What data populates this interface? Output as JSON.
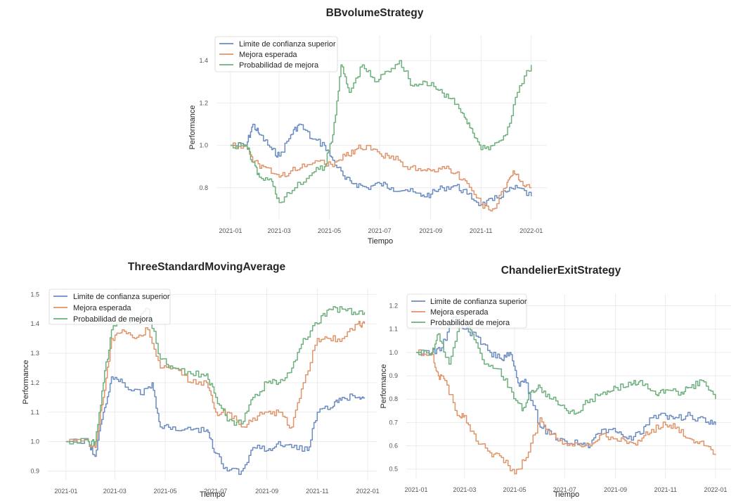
{
  "colors": {
    "limite": "#6b8cc1",
    "mejora": "#e0946a",
    "probabilidad": "#6db07d"
  },
  "chart_data": [
    {
      "type": "line",
      "title": "BBvolumeStrategy",
      "xlabel": "Tiempo",
      "ylabel": "Performance",
      "xlim": [
        "2020-12-15",
        "2022-01-20"
      ],
      "ylim": [
        0.65,
        1.52
      ],
      "xticks": [
        "2021-01",
        "2021-03",
        "2021-05",
        "2021-07",
        "2021-09",
        "2021-11",
        "2022-01"
      ],
      "yticks": [
        "0.8",
        "1.0",
        "1.2",
        "1.4"
      ],
      "ytick_values": [
        0.8,
        1.0,
        1.2,
        1.4
      ],
      "grid": true,
      "legend_position": "top-left",
      "series": [
        {
          "name": "Limite de confianza superior",
          "color": "#6b8cc1",
          "x": [
            "2021-01-01",
            "2021-01-20",
            "2021-01-28",
            "2021-02-05",
            "2021-02-20",
            "2021-03-01",
            "2021-03-15",
            "2021-03-25",
            "2021-04-10",
            "2021-04-25",
            "2021-05-05",
            "2021-05-20",
            "2021-06-01",
            "2021-06-15",
            "2021-07-01",
            "2021-07-15",
            "2021-08-01",
            "2021-08-20",
            "2021-09-01",
            "2021-09-15",
            "2021-10-01",
            "2021-10-15",
            "2021-11-01",
            "2021-11-15",
            "2021-12-01",
            "2021-12-15",
            "2022-01-01"
          ],
          "y": [
            1.0,
            1.0,
            1.1,
            1.05,
            0.98,
            0.95,
            1.05,
            1.1,
            1.03,
            1.0,
            0.93,
            0.84,
            0.82,
            0.8,
            0.82,
            0.8,
            0.79,
            0.76,
            0.77,
            0.8,
            0.81,
            0.77,
            0.72,
            0.74,
            0.78,
            0.8,
            0.76
          ]
        },
        {
          "name": "Mejora esperada",
          "color": "#e0946a",
          "x": [
            "2021-01-01",
            "2021-01-20",
            "2021-01-28",
            "2021-02-10",
            "2021-03-01",
            "2021-03-15",
            "2021-04-01",
            "2021-04-20",
            "2021-05-05",
            "2021-05-20",
            "2021-06-01",
            "2021-06-15",
            "2021-07-01",
            "2021-07-15",
            "2021-08-01",
            "2021-08-20",
            "2021-09-01",
            "2021-09-15",
            "2021-10-01",
            "2021-10-15",
            "2021-11-01",
            "2021-11-15",
            "2021-12-01",
            "2021-12-10",
            "2021-12-20",
            "2022-01-01"
          ],
          "y": [
            1.0,
            1.0,
            0.92,
            0.9,
            0.85,
            0.88,
            0.9,
            0.93,
            0.9,
            0.95,
            0.98,
            1.0,
            0.96,
            0.95,
            0.9,
            0.88,
            0.88,
            0.9,
            0.87,
            0.82,
            0.72,
            0.7,
            0.8,
            0.88,
            0.83,
            0.8
          ]
        },
        {
          "name": "Probabilidad de mejora",
          "color": "#6db07d",
          "x": [
            "2021-01-01",
            "2021-01-20",
            "2021-01-28",
            "2021-02-05",
            "2021-02-20",
            "2021-03-01",
            "2021-03-20",
            "2021-04-10",
            "2021-04-25",
            "2021-05-05",
            "2021-05-15",
            "2021-05-25",
            "2021-06-10",
            "2021-06-25",
            "2021-07-10",
            "2021-07-25",
            "2021-08-10",
            "2021-08-25",
            "2021-09-10",
            "2021-09-25",
            "2021-10-10",
            "2021-10-20",
            "2021-11-01",
            "2021-11-15",
            "2021-12-01",
            "2021-12-15",
            "2022-01-01"
          ],
          "y": [
            1.0,
            1.0,
            0.92,
            0.85,
            0.83,
            0.73,
            0.8,
            0.87,
            0.9,
            1.05,
            1.38,
            1.25,
            1.38,
            1.3,
            1.35,
            1.4,
            1.28,
            1.3,
            1.26,
            1.22,
            1.15,
            1.08,
            0.98,
            1.0,
            1.05,
            1.25,
            1.38
          ]
        }
      ]
    },
    {
      "type": "line",
      "title": "ThreeStandardMovingAverage",
      "xlabel": "Tiempo",
      "ylabel": "Performance",
      "xlim": [
        "2020-12-10",
        "2022-01-12"
      ],
      "ylim": [
        0.87,
        1.52
      ],
      "xticks": [
        "2021-01",
        "2021-03",
        "2021-05",
        "2021-07",
        "2021-09",
        "2021-11",
        "2022-01"
      ],
      "yticks": [
        "0.9",
        "1.0",
        "1.1",
        "1.2",
        "1.3",
        "1.4",
        "1.5"
      ],
      "ytick_values": [
        0.9,
        1.0,
        1.1,
        1.2,
        1.3,
        1.4,
        1.5
      ],
      "grid": true,
      "legend_position": "top-left",
      "series": [
        {
          "name": "Limite de confianza superior",
          "color": "#6b8cc1",
          "x": [
            "2021-01-01",
            "2021-01-28",
            "2021-02-05",
            "2021-02-15",
            "2021-02-25",
            "2021-03-10",
            "2021-04-01",
            "2021-04-15",
            "2021-04-25",
            "2021-05-10",
            "2021-06-01",
            "2021-06-20",
            "2021-07-01",
            "2021-07-15",
            "2021-08-01",
            "2021-08-15",
            "2021-09-01",
            "2021-09-15",
            "2021-10-01",
            "2021-10-20",
            "2021-11-01",
            "2021-11-20",
            "2021-12-01",
            "2021-12-20",
            "2021-12-28"
          ],
          "y": [
            1.0,
            1.0,
            0.95,
            1.1,
            1.22,
            1.2,
            1.16,
            1.2,
            1.05,
            1.05,
            1.04,
            1.04,
            0.96,
            0.9,
            0.9,
            0.98,
            0.97,
            1.0,
            0.98,
            0.97,
            1.1,
            1.12,
            1.15,
            1.15,
            1.15
          ]
        },
        {
          "name": "Mejora esperada",
          "color": "#e0946a",
          "x": [
            "2021-01-01",
            "2021-01-28",
            "2021-02-05",
            "2021-02-15",
            "2021-02-25",
            "2021-03-10",
            "2021-03-25",
            "2021-04-10",
            "2021-04-25",
            "2021-05-10",
            "2021-06-01",
            "2021-06-20",
            "2021-07-01",
            "2021-07-15",
            "2021-08-01",
            "2021-08-15",
            "2021-09-01",
            "2021-09-15",
            "2021-10-01",
            "2021-10-15",
            "2021-11-01",
            "2021-11-15",
            "2021-12-01",
            "2021-12-20",
            "2021-12-28"
          ],
          "y": [
            1.0,
            1.0,
            0.98,
            1.15,
            1.35,
            1.38,
            1.35,
            1.38,
            1.25,
            1.25,
            1.2,
            1.2,
            1.1,
            1.1,
            1.05,
            1.08,
            1.1,
            1.1,
            1.05,
            1.2,
            1.35,
            1.35,
            1.35,
            1.4,
            1.4
          ]
        },
        {
          "name": "Probabilidad de mejora",
          "color": "#6db07d",
          "x": [
            "2021-01-01",
            "2021-01-28",
            "2021-02-05",
            "2021-02-15",
            "2021-02-25",
            "2021-03-10",
            "2021-03-25",
            "2021-04-10",
            "2021-04-25",
            "2021-05-10",
            "2021-06-01",
            "2021-06-20",
            "2021-07-01",
            "2021-07-15",
            "2021-08-01",
            "2021-08-15",
            "2021-09-01",
            "2021-09-15",
            "2021-10-01",
            "2021-10-15",
            "2021-11-01",
            "2021-11-15",
            "2021-12-01",
            "2021-12-15",
            "2021-12-28"
          ],
          "y": [
            1.0,
            1.0,
            1.0,
            1.2,
            1.38,
            1.42,
            1.4,
            1.45,
            1.28,
            1.25,
            1.23,
            1.23,
            1.15,
            1.07,
            1.06,
            1.15,
            1.2,
            1.2,
            1.25,
            1.35,
            1.4,
            1.45,
            1.45,
            1.44,
            1.44
          ]
        }
      ]
    },
    {
      "type": "line",
      "title": "ChandelierExitStrategy",
      "xlabel": "Tiempo",
      "ylabel": "Performance",
      "xlim": [
        "2020-12-20",
        "2022-01-20"
      ],
      "ylim": [
        0.46,
        1.25
      ],
      "xticks": [
        "2021-01",
        "2021-03",
        "2021-05",
        "2021-07",
        "2021-09",
        "2021-11",
        "2022-01"
      ],
      "yticks": [
        "0.5",
        "0.6",
        "0.7",
        "0.8",
        "0.9",
        "1.0",
        "1.1",
        "1.2"
      ],
      "ytick_values": [
        0.5,
        0.6,
        0.7,
        0.8,
        0.9,
        1.0,
        1.1,
        1.2
      ],
      "grid": true,
      "legend_position": "top-left",
      "series": [
        {
          "name": "Limite de confianza superior",
          "color": "#6b8cc1",
          "x": [
            "2021-01-01",
            "2021-01-20",
            "2021-02-01",
            "2021-02-15",
            "2021-03-01",
            "2021-03-15",
            "2021-04-01",
            "2021-04-15",
            "2021-04-25",
            "2021-05-05",
            "2021-05-15",
            "2021-06-01",
            "2021-06-15",
            "2021-07-01",
            "2021-07-20",
            "2021-08-01",
            "2021-08-15",
            "2021-09-01",
            "2021-09-15",
            "2021-10-01",
            "2021-10-15",
            "2021-11-01",
            "2021-11-15",
            "2021-12-01",
            "2021-12-20",
            "2022-01-01"
          ],
          "y": [
            1.0,
            1.0,
            1.02,
            1.15,
            1.1,
            1.07,
            1.0,
            0.97,
            1.0,
            0.87,
            0.87,
            0.68,
            0.65,
            0.62,
            0.61,
            0.6,
            0.67,
            0.66,
            0.63,
            0.65,
            0.72,
            0.73,
            0.72,
            0.73,
            0.7,
            0.69
          ]
        },
        {
          "name": "Mejora esperada",
          "color": "#e0946a",
          "x": [
            "2021-01-01",
            "2021-01-20",
            "2021-01-28",
            "2021-02-05",
            "2021-02-20",
            "2021-03-01",
            "2021-03-15",
            "2021-04-01",
            "2021-04-15",
            "2021-05-01",
            "2021-05-15",
            "2021-06-01",
            "2021-06-15",
            "2021-07-01",
            "2021-07-20",
            "2021-08-01",
            "2021-08-15",
            "2021-09-01",
            "2021-09-15",
            "2021-10-01",
            "2021-10-15",
            "2021-11-01",
            "2021-11-15",
            "2021-12-01",
            "2021-12-15",
            "2022-01-01"
          ],
          "y": [
            1.0,
            1.0,
            0.9,
            0.88,
            0.73,
            0.73,
            0.62,
            0.57,
            0.55,
            0.48,
            0.55,
            0.72,
            0.65,
            0.61,
            0.6,
            0.6,
            0.65,
            0.63,
            0.61,
            0.62,
            0.67,
            0.69,
            0.68,
            0.63,
            0.62,
            0.56
          ]
        },
        {
          "name": "Probabilidad de mejora",
          "color": "#6db07d",
          "x": [
            "2021-01-01",
            "2021-01-20",
            "2021-01-28",
            "2021-02-10",
            "2021-02-25",
            "2021-03-10",
            "2021-03-25",
            "2021-04-10",
            "2021-04-25",
            "2021-05-10",
            "2021-05-20",
            "2021-06-01",
            "2021-06-15",
            "2021-07-01",
            "2021-07-15",
            "2021-08-01",
            "2021-08-20",
            "2021-09-01",
            "2021-09-20",
            "2021-10-01",
            "2021-10-20",
            "2021-11-01",
            "2021-11-20",
            "2021-12-01",
            "2021-12-15",
            "2022-01-01"
          ],
          "y": [
            1.0,
            1.0,
            1.08,
            0.95,
            1.15,
            1.08,
            0.95,
            0.93,
            0.85,
            0.75,
            0.83,
            0.85,
            0.8,
            0.76,
            0.74,
            0.8,
            0.82,
            0.85,
            0.86,
            0.88,
            0.82,
            0.84,
            0.83,
            0.85,
            0.88,
            0.8
          ]
        }
      ]
    }
  ]
}
